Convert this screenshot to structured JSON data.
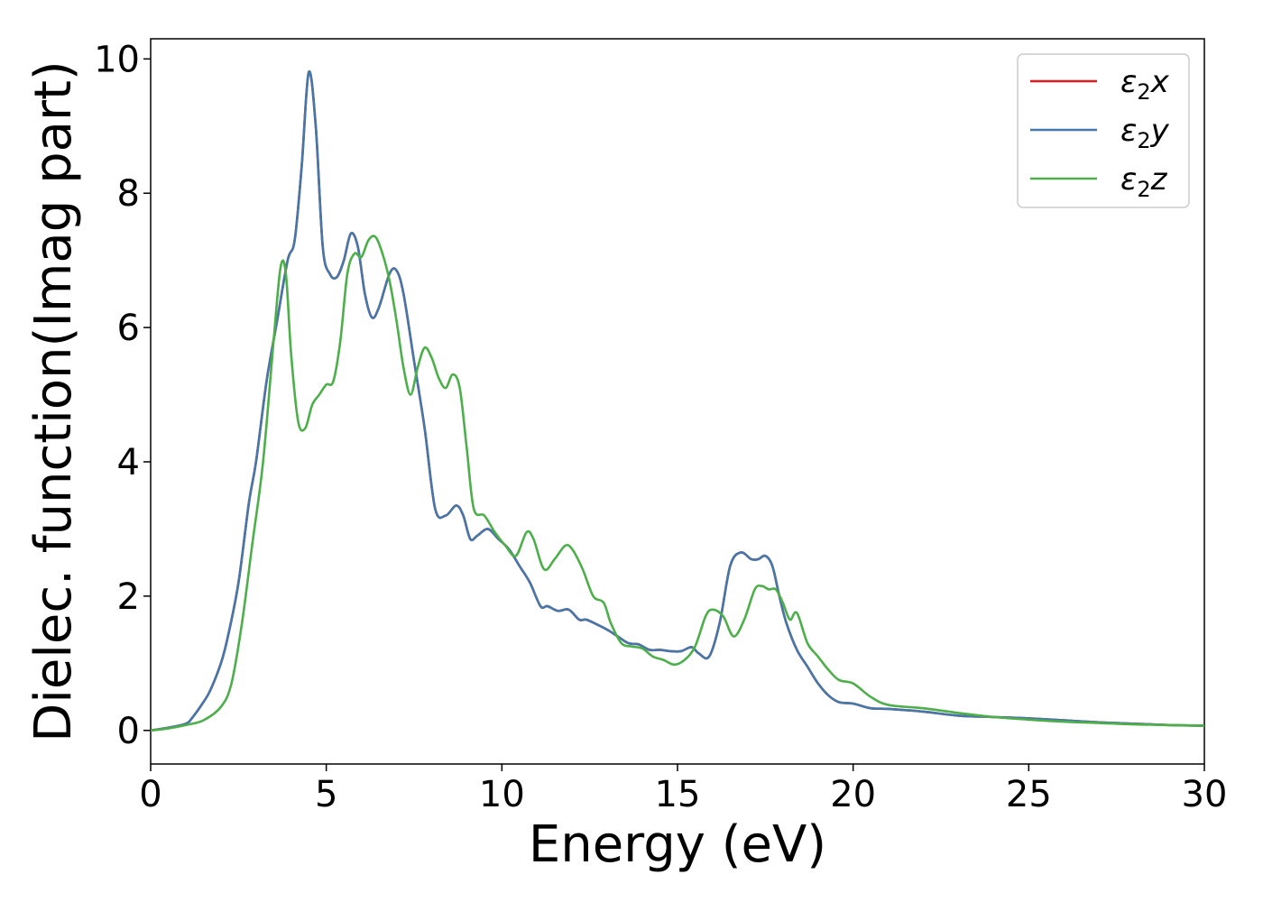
{
  "chart_data": {
    "type": "line",
    "xlabel": "Energy (eV)",
    "ylabel": "Dielec. function(Imag part)",
    "xlim": [
      0,
      30
    ],
    "ylim": [
      -0.5,
      10.3
    ],
    "xticks": [
      0,
      5,
      10,
      15,
      20,
      25,
      30
    ],
    "yticks": [
      0,
      2,
      4,
      6,
      8,
      10
    ],
    "grid": false,
    "legend_position": "top-right",
    "series": [
      {
        "name": "ε2x",
        "legend_base": "ε",
        "legend_sub": "2",
        "legend_suffix": "x",
        "color": "#e41a1c",
        "x": [
          0,
          0.5,
          1,
          1.2,
          1.5,
          1.7,
          2,
          2.2,
          2.5,
          2.8,
          3,
          3.3,
          3.6,
          3.9,
          4.1,
          4.3,
          4.5,
          4.7,
          4.9,
          5.1,
          5.3,
          5.5,
          5.7,
          5.9,
          6.1,
          6.3,
          6.5,
          6.8,
          7.0,
          7.2,
          7.5,
          7.8,
          8.1,
          8.4,
          8.7,
          8.9,
          9.1,
          9.3,
          9.6,
          9.9,
          10.2,
          10.5,
          10.8,
          11.1,
          11.3,
          11.6,
          11.9,
          12.2,
          12.4,
          12.7,
          13.0,
          13.3,
          13.6,
          13.9,
          14.2,
          14.5,
          14.8,
          15.1,
          15.4,
          15.6,
          15.9,
          16.2,
          16.5,
          16.8,
          17.1,
          17.3,
          17.5,
          17.7,
          17.9,
          18.1,
          18.4,
          18.7,
          19.0,
          19.3,
          19.6,
          20.0,
          20.5,
          21,
          22,
          23,
          24,
          25,
          26,
          27,
          28,
          29,
          30
        ],
        "values": [
          0,
          0.04,
          0.1,
          0.2,
          0.42,
          0.6,
          1.0,
          1.4,
          2.2,
          3.4,
          4.0,
          5.2,
          6.1,
          7.0,
          7.3,
          8.4,
          9.8,
          9.0,
          7.2,
          6.8,
          6.75,
          7.0,
          7.4,
          7.2,
          6.5,
          6.15,
          6.3,
          6.8,
          6.85,
          6.5,
          5.5,
          4.5,
          3.3,
          3.2,
          3.35,
          3.2,
          2.85,
          2.9,
          3.0,
          2.85,
          2.7,
          2.45,
          2.2,
          1.85,
          1.85,
          1.78,
          1.8,
          1.65,
          1.65,
          1.58,
          1.5,
          1.4,
          1.3,
          1.28,
          1.2,
          1.2,
          1.18,
          1.18,
          1.24,
          1.15,
          1.1,
          1.6,
          2.45,
          2.65,
          2.55,
          2.55,
          2.6,
          2.45,
          2.0,
          1.6,
          1.2,
          0.95,
          0.7,
          0.52,
          0.42,
          0.4,
          0.33,
          0.32,
          0.28,
          0.22,
          0.2,
          0.18,
          0.15,
          0.12,
          0.1,
          0.08,
          0.07
        ]
      },
      {
        "name": "ε2y",
        "legend_base": "ε",
        "legend_sub": "2",
        "legend_suffix": "y",
        "color": "#4477aa",
        "x": [
          0,
          0.5,
          1,
          1.2,
          1.5,
          1.7,
          2,
          2.2,
          2.5,
          2.8,
          3,
          3.3,
          3.6,
          3.9,
          4.1,
          4.3,
          4.5,
          4.7,
          4.9,
          5.1,
          5.3,
          5.5,
          5.7,
          5.9,
          6.1,
          6.3,
          6.5,
          6.8,
          7.0,
          7.2,
          7.5,
          7.8,
          8.1,
          8.4,
          8.7,
          8.9,
          9.1,
          9.3,
          9.6,
          9.9,
          10.2,
          10.5,
          10.8,
          11.1,
          11.3,
          11.6,
          11.9,
          12.2,
          12.4,
          12.7,
          13.0,
          13.3,
          13.6,
          13.9,
          14.2,
          14.5,
          14.8,
          15.1,
          15.4,
          15.6,
          15.9,
          16.2,
          16.5,
          16.8,
          17.1,
          17.3,
          17.5,
          17.7,
          17.9,
          18.1,
          18.4,
          18.7,
          19.0,
          19.3,
          19.6,
          20.0,
          20.5,
          21,
          22,
          23,
          24,
          25,
          26,
          27,
          28,
          29,
          30
        ],
        "values": [
          0,
          0.04,
          0.1,
          0.2,
          0.42,
          0.6,
          1.0,
          1.4,
          2.2,
          3.4,
          4.0,
          5.2,
          6.1,
          7.0,
          7.3,
          8.4,
          9.8,
          9.0,
          7.2,
          6.8,
          6.75,
          7.0,
          7.4,
          7.2,
          6.5,
          6.15,
          6.3,
          6.8,
          6.85,
          6.5,
          5.5,
          4.5,
          3.3,
          3.2,
          3.35,
          3.2,
          2.85,
          2.9,
          3.0,
          2.85,
          2.7,
          2.45,
          2.2,
          1.85,
          1.85,
          1.78,
          1.8,
          1.65,
          1.65,
          1.58,
          1.5,
          1.4,
          1.3,
          1.28,
          1.2,
          1.2,
          1.18,
          1.18,
          1.24,
          1.15,
          1.1,
          1.6,
          2.45,
          2.65,
          2.55,
          2.55,
          2.6,
          2.45,
          2.0,
          1.6,
          1.2,
          0.95,
          0.7,
          0.52,
          0.42,
          0.4,
          0.33,
          0.32,
          0.28,
          0.22,
          0.2,
          0.18,
          0.15,
          0.12,
          0.1,
          0.08,
          0.07
        ]
      },
      {
        "name": "ε2z",
        "legend_base": "ε",
        "legend_sub": "2",
        "legend_suffix": "z",
        "color": "#4daf4a",
        "x": [
          0,
          0.5,
          1,
          1.5,
          2,
          2.3,
          2.6,
          2.9,
          3.2,
          3.5,
          3.7,
          3.85,
          4.0,
          4.2,
          4.4,
          4.6,
          4.8,
          5.0,
          5.2,
          5.4,
          5.6,
          5.8,
          6.0,
          6.2,
          6.4,
          6.6,
          6.8,
          7.0,
          7.2,
          7.4,
          7.6,
          7.8,
          8.0,
          8.2,
          8.4,
          8.6,
          8.8,
          9.0,
          9.2,
          9.5,
          9.8,
          10.1,
          10.4,
          10.7,
          10.9,
          11.2,
          11.5,
          11.8,
          12.0,
          12.3,
          12.6,
          12.9,
          13.1,
          13.4,
          13.7,
          14.0,
          14.3,
          14.6,
          14.9,
          15.2,
          15.5,
          15.8,
          16.0,
          16.3,
          16.6,
          16.9,
          17.2,
          17.4,
          17.6,
          17.8,
          18.0,
          18.2,
          18.4,
          18.7,
          19.0,
          19.3,
          19.6,
          20.0,
          20.5,
          21,
          22,
          23,
          24,
          25,
          26,
          27,
          28,
          29,
          30
        ],
        "values": [
          0,
          0.03,
          0.08,
          0.15,
          0.35,
          0.7,
          1.6,
          2.8,
          4.0,
          5.8,
          6.9,
          6.8,
          5.6,
          4.6,
          4.5,
          4.85,
          5.0,
          5.15,
          5.2,
          5.8,
          6.8,
          7.1,
          7.05,
          7.3,
          7.35,
          7.1,
          6.7,
          6.1,
          5.4,
          5.0,
          5.4,
          5.7,
          5.55,
          5.25,
          5.1,
          5.3,
          5.1,
          4.2,
          3.3,
          3.2,
          2.95,
          2.75,
          2.6,
          2.95,
          2.85,
          2.4,
          2.55,
          2.75,
          2.7,
          2.4,
          2.0,
          1.9,
          1.6,
          1.3,
          1.25,
          1.22,
          1.1,
          1.05,
          0.98,
          1.05,
          1.25,
          1.7,
          1.8,
          1.7,
          1.4,
          1.65,
          2.1,
          2.15,
          2.1,
          2.1,
          1.9,
          1.65,
          1.75,
          1.3,
          1.1,
          0.9,
          0.75,
          0.7,
          0.5,
          0.38,
          0.33,
          0.26,
          0.2,
          0.16,
          0.13,
          0.11,
          0.09,
          0.08,
          0.07
        ]
      }
    ]
  }
}
